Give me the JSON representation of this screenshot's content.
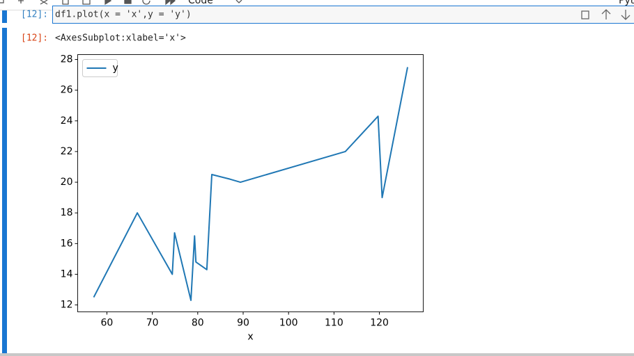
{
  "toolbar": {
    "cell_type": "Code",
    "kernel": "Pyt"
  },
  "input_cell": {
    "prompt": "[12]:",
    "code": "df1.plot(x = 'x',y = 'y')"
  },
  "output_cell": {
    "prompt": "[12]:",
    "text": "<AxesSubplot:xlabel='x'>"
  },
  "chart_data": {
    "type": "line",
    "xlabel": "x",
    "x": [
      57.1,
      66.7,
      74.4,
      74.9,
      78.5,
      79.3,
      79.6,
      82.0,
      83.1,
      87.1,
      89.4,
      112.5,
      119.7,
      120.6,
      126.2
    ],
    "series": [
      {
        "name": "y",
        "color": "#1f77b4",
        "values": [
          12.5,
          18,
          14,
          16.7,
          12.3,
          16.5,
          14.8,
          14.3,
          20.5,
          20.2,
          20,
          22,
          24.3,
          19,
          27.5
        ]
      }
    ],
    "xlim": [
      53.57,
      129.65
    ],
    "ylim": [
      11.55,
      28.32
    ],
    "xticks": [
      60,
      70,
      80,
      90,
      100,
      110,
      120
    ],
    "yticks": [
      12,
      14,
      16,
      18,
      20,
      22,
      24,
      26,
      28
    ],
    "grid": false,
    "legend": "upper left"
  }
}
